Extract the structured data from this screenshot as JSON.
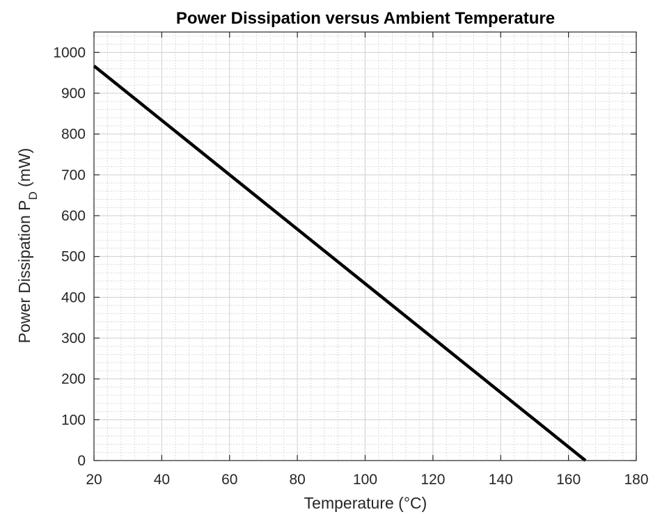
{
  "chart_data": {
    "type": "line",
    "title": "Power Dissipation versus Ambient Temperature",
    "xlabel": "Temperature (°C)",
    "ylabel": {
      "prefix": "Power Dissipation P",
      "subscript": "D",
      "suffix": " (mW)"
    },
    "xlim": [
      20,
      180
    ],
    "ylim": [
      0,
      1050
    ],
    "x_ticks": [
      20,
      40,
      60,
      80,
      100,
      120,
      140,
      160,
      180
    ],
    "y_ticks": [
      0,
      100,
      200,
      300,
      400,
      500,
      600,
      700,
      800,
      900,
      1000
    ],
    "x_minor_step": 4,
    "y_minor_step": 20,
    "grid": true,
    "series": [
      {
        "name": "Power Dissipation",
        "color": "#000000",
        "x": [
          20,
          165
        ],
        "y": [
          967,
          0
        ]
      }
    ]
  }
}
